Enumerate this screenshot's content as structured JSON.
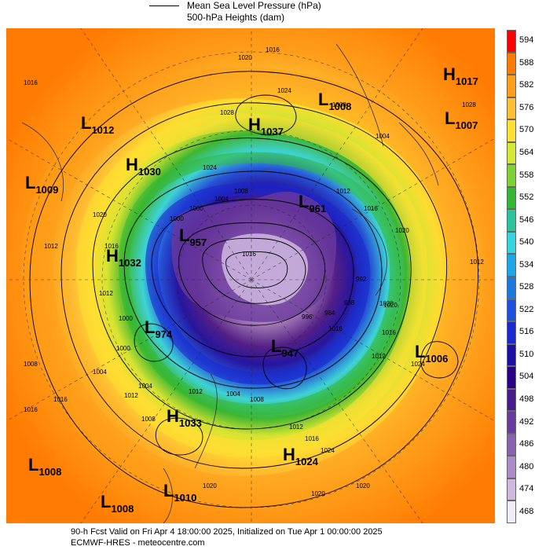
{
  "legend": {
    "mslp_label": "Mean Sea Level Pressure (hPa)",
    "height_label": "500-hPa Heights (dam)"
  },
  "colorbar": {
    "levels": [
      "594",
      "588",
      "582",
      "576",
      "570",
      "564",
      "558",
      "552",
      "546",
      "540",
      "534",
      "528",
      "522",
      "516",
      "510",
      "504",
      "498",
      "492",
      "486",
      "480",
      "474",
      "468"
    ],
    "colors": [
      "#ff0000",
      "#ff7a00",
      "#ff9e1a",
      "#ffbf33",
      "#ffe033",
      "#d4e833",
      "#7cd133",
      "#33b833",
      "#2ac49a",
      "#33d6e0",
      "#1aa8e8",
      "#1a78e0",
      "#1a4fe0",
      "#1a28d0",
      "#1a10a8",
      "#2a0088",
      "#4a1a8c",
      "#6a3a9e",
      "#8a60b0",
      "#ad8ac8",
      "#cfb8e0",
      "#f2ecf6"
    ]
  },
  "centers": [
    {
      "type": "H",
      "value": "1017"
    },
    {
      "type": "L",
      "value": "1008"
    },
    {
      "type": "L",
      "value": "1007"
    },
    {
      "type": "L",
      "value": "1012"
    },
    {
      "type": "H",
      "value": "1037"
    },
    {
      "type": "H",
      "value": "1030"
    },
    {
      "type": "L",
      "value": "1009"
    },
    {
      "type": "L",
      "value": "961"
    },
    {
      "type": "L",
      "value": "957"
    },
    {
      "type": "H",
      "value": "1032"
    },
    {
      "type": "L",
      "value": "974"
    },
    {
      "type": "L",
      "value": "947"
    },
    {
      "type": "L",
      "value": "1006"
    },
    {
      "type": "H",
      "value": "1033"
    },
    {
      "type": "H",
      "value": "1024"
    },
    {
      "type": "L",
      "value": "1008"
    },
    {
      "type": "L",
      "value": "1010"
    },
    {
      "type": "L",
      "value": "1008"
    }
  ],
  "contour_labels": [
    "1020",
    "1016",
    "1024",
    "1028",
    "1008",
    "1004",
    "1016",
    "1020",
    "1016",
    "1012",
    "1008",
    "1000",
    "1012",
    "1024",
    "1016",
    "1020",
    "1012",
    "1024",
    "1016",
    "1020",
    "1004",
    "1016",
    "1012",
    "1020",
    "1016",
    "1020",
    "1020",
    "1016",
    "1012",
    "1000",
    "1004",
    "1008",
    "1012",
    "1004",
    "1008",
    "1012",
    "1016",
    "992",
    "988",
    "984",
    "996",
    "1000",
    "1000",
    "1004",
    "1008",
    "1012",
    "1016",
    "1020",
    "1024",
    "1028"
  ],
  "footer": {
    "line1": "90-h Fcst Valid on Fri Apr  4 18:00:00 2025, Initialized on Tue Apr  1 00:00:00 2025",
    "line2": "ECMWF-HRES  - meteocentre.com"
  }
}
